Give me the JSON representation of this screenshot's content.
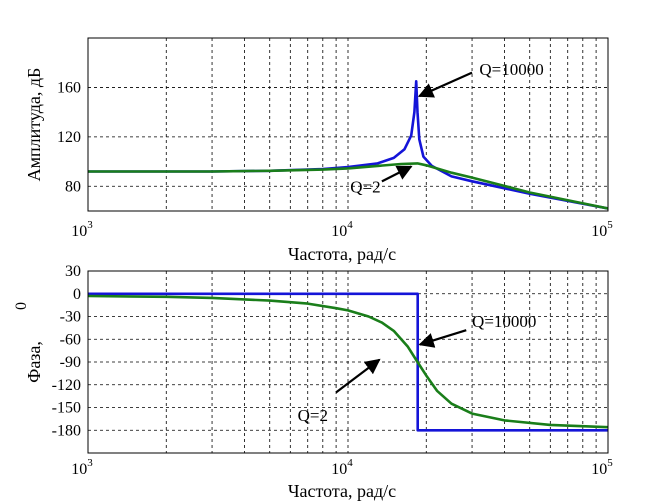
{
  "chart_data": [
    {
      "type": "line",
      "xscale": "log",
      "xlim": [
        1000,
        100000
      ],
      "ylim": [
        60,
        200
      ],
      "yticks": [
        80,
        120,
        160
      ],
      "xticks": [
        {
          "base": "10",
          "exp": "3"
        },
        {
          "base": "10",
          "exp": "4"
        },
        {
          "base": "10",
          "exp": "5"
        }
      ],
      "xlabel": "Частота, рад/с",
      "ylabel": "Амплитуда, дБ",
      "grid": true,
      "series": [
        {
          "name": "Q=10000",
          "color": "#1414d8",
          "x": [
            1000,
            3000,
            5000,
            8000,
            10000,
            13000,
            15000,
            16500,
            17500,
            18000,
            18300,
            18500,
            18800,
            19500,
            21000,
            25000,
            30000,
            50000,
            100000
          ],
          "y": [
            92,
            92,
            92.5,
            94,
            95.5,
            98.5,
            103,
            110,
            121,
            140,
            165,
            140,
            118,
            104,
            96.5,
            88,
            84,
            74,
            62
          ]
        },
        {
          "name": "Q=2",
          "color": "#1a7e1a",
          "x": [
            1000,
            3000,
            5000,
            8000,
            10000,
            13000,
            16000,
            18500,
            20000,
            25000,
            30000,
            50000,
            100000
          ],
          "y": [
            92,
            92,
            92.5,
            93.5,
            94.5,
            96.5,
            98,
            98.5,
            97,
            91,
            87,
            75,
            62
          ]
        }
      ],
      "annotations": [
        {
          "text": "Q=10000",
          "label_at": [
            32000,
            175
          ],
          "arrow_from": [
            30000,
            172
          ],
          "arrow_to": [
            18800,
            153
          ]
        },
        {
          "text": "Q=2",
          "label_at": [
            10200,
            80
          ],
          "arrow_from": [
            13500,
            84
          ],
          "arrow_to": [
            17500,
            96
          ]
        }
      ]
    },
    {
      "type": "line",
      "xscale": "log",
      "xlim": [
        1000,
        100000
      ],
      "ylim": [
        -210,
        30
      ],
      "yticks": [
        30,
        0,
        -30,
        -60,
        -90,
        -120,
        -150,
        -180
      ],
      "xticks": [
        {
          "base": "10",
          "exp": "3"
        },
        {
          "base": "10",
          "exp": "4"
        },
        {
          "base": "10",
          "exp": "5"
        }
      ],
      "xlabel": "Частота, рад/с",
      "ylabel": "Фаза,",
      "ylabel_sup": "0",
      "grid": true,
      "series": [
        {
          "name": "Q=10000",
          "color": "#1414d8",
          "x": [
            1000,
            18540,
            18540,
            100000
          ],
          "y": [
            0,
            0,
            -180,
            -180
          ]
        },
        {
          "name": "Q=2",
          "color": "#1a7e1a",
          "x": [
            1000,
            2000,
            3000,
            5000,
            7000,
            9000,
            10000,
            12000,
            13500,
            15000,
            17000,
            18500,
            20000,
            22000,
            25000,
            30000,
            40000,
            60000,
            100000
          ],
          "y": [
            -3,
            -4,
            -5.5,
            -9,
            -13,
            -19,
            -22,
            -30,
            -38,
            -49,
            -70,
            -90,
            -108,
            -128,
            -145,
            -158,
            -167,
            -173,
            -176
          ]
        }
      ],
      "annotations": [
        {
          "text": "Q=10000",
          "label_at": [
            30000,
            -36
          ],
          "arrow_from": [
            28500,
            -48
          ],
          "arrow_to": [
            18900,
            -67
          ]
        },
        {
          "text": "Q=2",
          "label_at": [
            6400,
            -160
          ],
          "arrow_from": [
            9000,
            -130
          ],
          "arrow_to": [
            13200,
            -87
          ]
        }
      ]
    }
  ]
}
